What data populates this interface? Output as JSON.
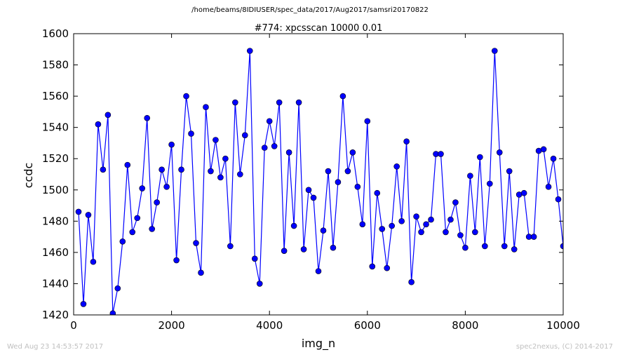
{
  "suptitle": "/home/beams/8IDIUSER/spec_data/2017/Aug2017/samsri20170822",
  "footer_left": "Wed Aug 23 14:53:57 2017",
  "footer_right": "spec2nexus, (C) 2014-2017",
  "chart_data": {
    "type": "line",
    "title": "#774: xpcsscan 10000 0.01",
    "xlabel": "img_n",
    "ylabel": "ccdc",
    "xlim": [
      0,
      10000
    ],
    "ylim": [
      1420,
      1600
    ],
    "xticks": [
      0,
      2000,
      4000,
      6000,
      8000,
      10000
    ],
    "yticks": [
      1420,
      1440,
      1460,
      1480,
      1500,
      1520,
      1540,
      1560,
      1580,
      1600
    ],
    "grid": false,
    "legend": "none",
    "line_color": "#0000ff",
    "marker_color": "#0000ff",
    "series": [
      {
        "x": [
          100,
          200,
          300,
          400,
          500,
          600,
          700,
          800,
          900,
          1000,
          1100,
          1200,
          1300,
          1400,
          1500,
          1600,
          1700,
          1800,
          1900,
          2000,
          2100,
          2200,
          2300,
          2400,
          2500,
          2600,
          2700,
          2800,
          2900,
          3000,
          3100,
          3200,
          3300,
          3400,
          3500,
          3600,
          3700,
          3800,
          3900,
          4000,
          4100,
          4200,
          4300,
          4400,
          4500,
          4600,
          4700,
          4800,
          4900,
          5000,
          5100,
          5200,
          5300,
          5400,
          5500,
          5600,
          5700,
          5800,
          5900,
          6000,
          6100,
          6200,
          6300,
          6400,
          6500,
          6600,
          6700,
          6800,
          6900,
          7000,
          7100,
          7200,
          7300,
          7400,
          7500,
          7600,
          7700,
          7800,
          7900,
          8000,
          8100,
          8200,
          8300,
          8400,
          8500,
          8600,
          8700,
          8800,
          8900,
          9000,
          9100,
          9200,
          9300,
          9400,
          9500,
          9600,
          9700,
          9800,
          9900,
          10000
        ],
        "y": [
          1486,
          1427,
          1484,
          1454,
          1542,
          1513,
          1548,
          1421,
          1437,
          1467,
          1516,
          1473,
          1482,
          1501,
          1546,
          1475,
          1492,
          1513,
          1502,
          1529,
          1455,
          1513,
          1560,
          1536,
          1466,
          1447,
          1553,
          1512,
          1532,
          1508,
          1520,
          1464,
          1556,
          1510,
          1535,
          1589,
          1456,
          1440,
          1527,
          1544,
          1528,
          1556,
          1461,
          1524,
          1477,
          1556,
          1462,
          1500,
          1495,
          1448,
          1474,
          1512,
          1463,
          1505,
          1560,
          1512,
          1524,
          1502,
          1478,
          1544,
          1451,
          1498,
          1475,
          1450,
          1477,
          1515,
          1480,
          1531,
          1441,
          1483,
          1473,
          1478,
          1481,
          1523,
          1523,
          1473,
          1481,
          1492,
          1471,
          1463,
          1509,
          1473,
          1521,
          1464,
          1504,
          1589,
          1524,
          1464,
          1512,
          1462,
          1497,
          1498,
          1470,
          1470,
          1525,
          1526,
          1502,
          1520,
          1494,
          1464
        ]
      }
    ]
  }
}
